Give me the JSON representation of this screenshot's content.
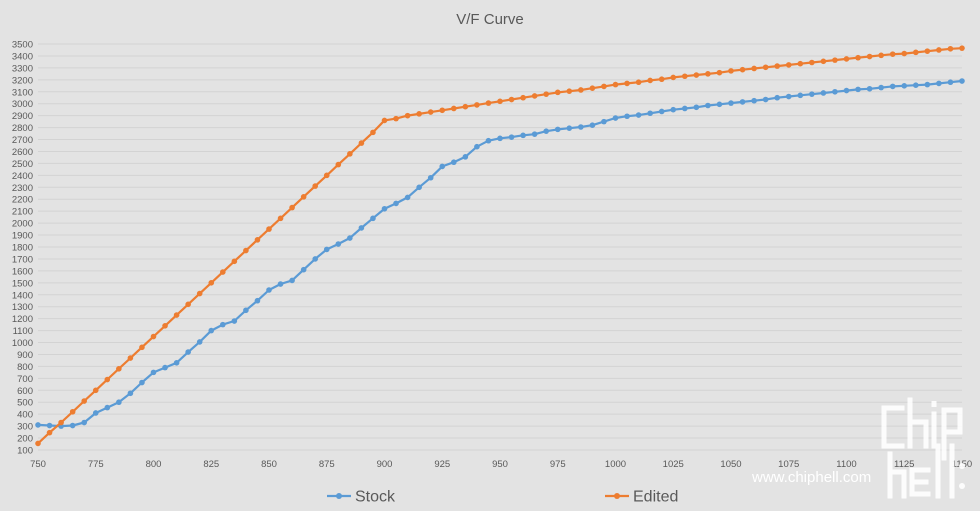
{
  "chart_data": {
    "type": "line",
    "title": "V/F Curve",
    "xlabel": "",
    "ylabel": "",
    "xlim": [
      750,
      1150
    ],
    "ylim": [
      100,
      3500
    ],
    "x_ticks": [
      750,
      775,
      800,
      825,
      850,
      875,
      900,
      925,
      950,
      975,
      1000,
      1025,
      1050,
      1075,
      1100,
      1125,
      1150
    ],
    "y_ticks": [
      100,
      200,
      300,
      400,
      500,
      600,
      700,
      800,
      900,
      1000,
      1100,
      1200,
      1300,
      1400,
      1500,
      1600,
      1700,
      1800,
      1900,
      2000,
      2100,
      2200,
      2300,
      2400,
      2500,
      2600,
      2700,
      2800,
      2900,
      3000,
      3100,
      3200,
      3300,
      3400,
      3500
    ],
    "grid": true,
    "legend_position": "bottom",
    "series": [
      {
        "name": "Stock",
        "color": "#5b9bd5",
        "x": [
          750,
          755,
          760,
          765,
          770,
          775,
          780,
          785,
          790,
          795,
          800,
          805,
          810,
          815,
          820,
          825,
          830,
          835,
          840,
          845,
          850,
          855,
          860,
          865,
          870,
          875,
          880,
          885,
          890,
          895,
          900,
          905,
          910,
          915,
          920,
          925,
          930,
          935,
          940,
          945,
          950,
          955,
          960,
          965,
          970,
          975,
          980,
          985,
          990,
          995,
          1000,
          1005,
          1010,
          1015,
          1020,
          1025,
          1030,
          1035,
          1040,
          1045,
          1050,
          1055,
          1060,
          1065,
          1070,
          1075,
          1080,
          1085,
          1090,
          1095,
          1100,
          1105,
          1110,
          1115,
          1120,
          1125,
          1130,
          1135,
          1140,
          1145,
          1150
        ],
        "y": [
          310,
          305,
          300,
          305,
          330,
          410,
          455,
          500,
          575,
          665,
          750,
          790,
          830,
          920,
          1005,
          1100,
          1150,
          1180,
          1270,
          1350,
          1440,
          1490,
          1520,
          1610,
          1700,
          1780,
          1825,
          1875,
          1960,
          2040,
          2120,
          2165,
          2215,
          2300,
          2380,
          2475,
          2510,
          2555,
          2640,
          2690,
          2710,
          2720,
          2735,
          2745,
          2770,
          2785,
          2795,
          2805,
          2820,
          2850,
          2880,
          2895,
          2905,
          2920,
          2935,
          2950,
          2960,
          2970,
          2985,
          2995,
          3005,
          3015,
          3025,
          3035,
          3050,
          3060,
          3070,
          3080,
          3090,
          3100,
          3110,
          3120,
          3125,
          3135,
          3145,
          3150,
          3155,
          3160,
          3170,
          3180,
          3190
        ]
      },
      {
        "name": "Edited",
        "color": "#ed7d31",
        "x": [
          750,
          755,
          760,
          765,
          770,
          775,
          780,
          785,
          790,
          795,
          800,
          805,
          810,
          815,
          820,
          825,
          830,
          835,
          840,
          845,
          850,
          855,
          860,
          865,
          870,
          875,
          880,
          885,
          890,
          895,
          900,
          905,
          910,
          915,
          920,
          925,
          930,
          935,
          940,
          945,
          950,
          955,
          960,
          965,
          970,
          975,
          980,
          985,
          990,
          995,
          1000,
          1005,
          1010,
          1015,
          1020,
          1025,
          1030,
          1035,
          1040,
          1045,
          1050,
          1055,
          1060,
          1065,
          1070,
          1075,
          1080,
          1085,
          1090,
          1095,
          1100,
          1105,
          1110,
          1115,
          1120,
          1125,
          1130,
          1135,
          1140,
          1145,
          1150
        ],
        "y": [
          155,
          245,
          330,
          420,
          510,
          600,
          690,
          780,
          870,
          960,
          1050,
          1140,
          1230,
          1320,
          1410,
          1500,
          1590,
          1680,
          1770,
          1860,
          1950,
          2040,
          2130,
          2220,
          2310,
          2400,
          2490,
          2580,
          2670,
          2760,
          2860,
          2875,
          2900,
          2915,
          2930,
          2945,
          2960,
          2975,
          2990,
          3005,
          3020,
          3035,
          3050,
          3065,
          3080,
          3095,
          3105,
          3115,
          3130,
          3145,
          3160,
          3170,
          3180,
          3195,
          3205,
          3220,
          3230,
          3240,
          3250,
          3260,
          3275,
          3285,
          3295,
          3305,
          3315,
          3325,
          3335,
          3345,
          3355,
          3365,
          3375,
          3385,
          3395,
          3405,
          3415,
          3420,
          3430,
          3440,
          3450,
          3460,
          3465
        ]
      }
    ]
  },
  "watermark": {
    "url_text": "www.chiphell.com"
  }
}
